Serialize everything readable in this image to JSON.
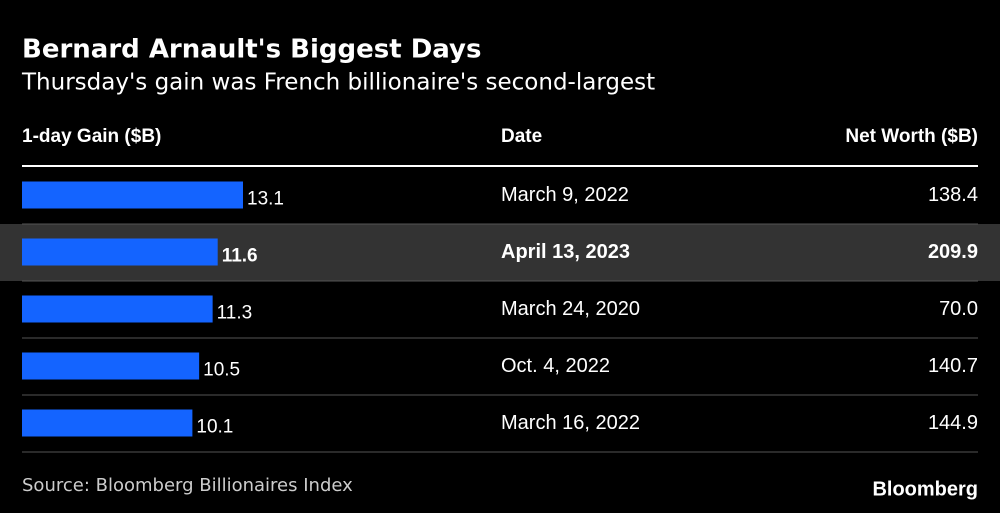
{
  "chart_data": {
    "type": "bar",
    "title": "Bernard Arnault's Biggest Days",
    "subtitle": "Thursday's gain was French billionaire's second-largest",
    "headers": [
      "1-day Gain ($B)",
      "Date",
      "Net Worth ($B)"
    ],
    "values": [
      13.1,
      11.6,
      11.3,
      10.5,
      10.1
    ],
    "value_labels": [
      "13.1",
      "11.6",
      "11.3",
      "10.5",
      "10.1"
    ],
    "dates": [
      "March 9, 2022",
      "April 13, 2023",
      "March 24, 2020",
      "Oct. 4, 2022",
      "March 16, 2022"
    ],
    "net_worth": [
      "138.4",
      "209.9",
      "70.0",
      "140.7",
      "144.9"
    ],
    "highlight": 1,
    "color": "#1464ff",
    "source": "Source: Bloomberg Billionaires Index",
    "brand": "Bloomberg"
  }
}
